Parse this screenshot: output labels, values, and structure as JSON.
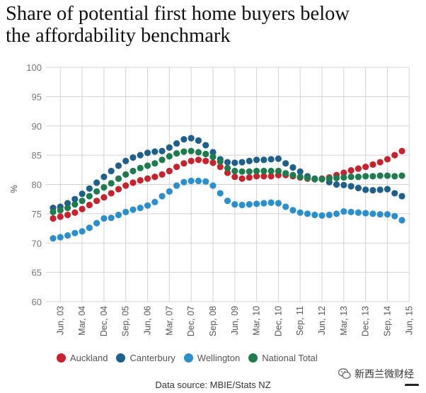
{
  "title_lines": [
    "Share of potential first home buyers below",
    "the affordability benchmark"
  ],
  "source": "Data source: MBIE/Stats NZ",
  "watermark": "新西兰微财经",
  "chart_data": {
    "type": "scatter",
    "title": "Share of potential first home buyers below the affordability benchmark",
    "ylabel": "%",
    "xlabel": "",
    "ylim": [
      60,
      100
    ],
    "yticks": [
      60,
      65,
      70,
      75,
      80,
      85,
      90,
      95,
      100
    ],
    "grid": true,
    "legend_position": "bottom",
    "x_start": "Mar, 03",
    "x_end": "Jun, 15",
    "x_step": "quarter",
    "xtick_labels": [
      {
        "label": "Jun, 03",
        "index": 1
      },
      {
        "label": "Mar, 04",
        "index": 4
      },
      {
        "label": "Dec, 04",
        "index": 7
      },
      {
        "label": "Sep, 05",
        "index": 10
      },
      {
        "label": "Jun, 06",
        "index": 13
      },
      {
        "label": "Mar, 07",
        "index": 16
      },
      {
        "label": "Dec, 07",
        "index": 19
      },
      {
        "label": "Sep, 08",
        "index": 22
      },
      {
        "label": "Jun, 09",
        "index": 25
      },
      {
        "label": "Mar, 10",
        "index": 28
      },
      {
        "label": "Dec, 10",
        "index": 31
      },
      {
        "label": "Sep, 11",
        "index": 34
      },
      {
        "label": "Jun, 12",
        "index": 37
      },
      {
        "label": "Mar, 13",
        "index": 40
      },
      {
        "label": "Dec, 13",
        "index": 43
      },
      {
        "label": "Sep, 14",
        "index": 46
      },
      {
        "label": "Jun, 15",
        "index": 49
      }
    ],
    "series": [
      {
        "name": "Auckland",
        "color": "#c8232c",
        "values": [
          74.2,
          74.5,
          74.8,
          75.2,
          75.8,
          76.5,
          77.2,
          77.8,
          78.5,
          79.2,
          79.8,
          80.3,
          80.7,
          81.0,
          81.3,
          81.7,
          82.3,
          83.0,
          83.6,
          84.0,
          84.2,
          84.0,
          83.7,
          83.0,
          82.0,
          81.3,
          81.0,
          81.2,
          81.4,
          81.4,
          81.4,
          81.6,
          81.6,
          81.4,
          81.2,
          81.0,
          80.9,
          81.0,
          81.2,
          81.6,
          82.0,
          82.4,
          82.7,
          83.0,
          83.4,
          83.8,
          84.3,
          85.0,
          85.7
        ]
      },
      {
        "name": "Canterbury",
        "color": "#1f5f8b",
        "values": [
          76.0,
          76.2,
          76.8,
          77.5,
          78.4,
          79.3,
          80.3,
          81.3,
          82.3,
          83.2,
          84.0,
          84.6,
          85.0,
          85.4,
          85.6,
          85.7,
          86.3,
          87.0,
          87.7,
          87.9,
          87.5,
          86.7,
          85.5,
          84.3,
          83.8,
          83.7,
          83.8,
          84.0,
          84.2,
          84.2,
          84.3,
          84.4,
          83.6,
          82.9,
          82.2,
          81.4,
          81.0,
          80.9,
          80.4,
          80.0,
          79.9,
          79.7,
          79.4,
          79.1,
          79.0,
          79.1,
          79.2,
          78.5,
          78.0
        ]
      },
      {
        "name": "Wellington",
        "color": "#2b8fcb",
        "values": [
          70.8,
          71.0,
          71.3,
          71.7,
          72.0,
          72.6,
          73.4,
          74.2,
          74.3,
          74.8,
          75.3,
          75.7,
          76.0,
          76.4,
          77.0,
          78.0,
          78.8,
          79.8,
          80.4,
          80.6,
          80.6,
          80.5,
          79.8,
          78.5,
          77.2,
          76.6,
          76.5,
          76.6,
          76.7,
          76.8,
          76.9,
          76.8,
          76.2,
          75.6,
          75.2,
          75.0,
          74.8,
          74.7,
          74.8,
          75.0,
          75.4,
          75.3,
          75.2,
          75.1,
          75.0,
          74.9,
          74.9,
          74.6,
          73.9
        ]
      },
      {
        "name": "National Total",
        "color": "#1e7b4d",
        "values": [
          75.3,
          75.6,
          76.0,
          76.6,
          77.2,
          78.0,
          78.8,
          79.5,
          80.2,
          81.0,
          81.7,
          82.3,
          82.8,
          83.2,
          83.6,
          84.2,
          84.8,
          85.3,
          85.6,
          85.7,
          85.5,
          85.2,
          84.7,
          83.9,
          82.8,
          82.3,
          82.2,
          82.2,
          82.3,
          82.3,
          82.3,
          82.3,
          81.9,
          81.6,
          81.3,
          81.1,
          80.9,
          80.9,
          81.0,
          81.1,
          81.2,
          81.3,
          81.3,
          81.4,
          81.4,
          81.5,
          81.5,
          81.4,
          81.5
        ]
      }
    ]
  }
}
